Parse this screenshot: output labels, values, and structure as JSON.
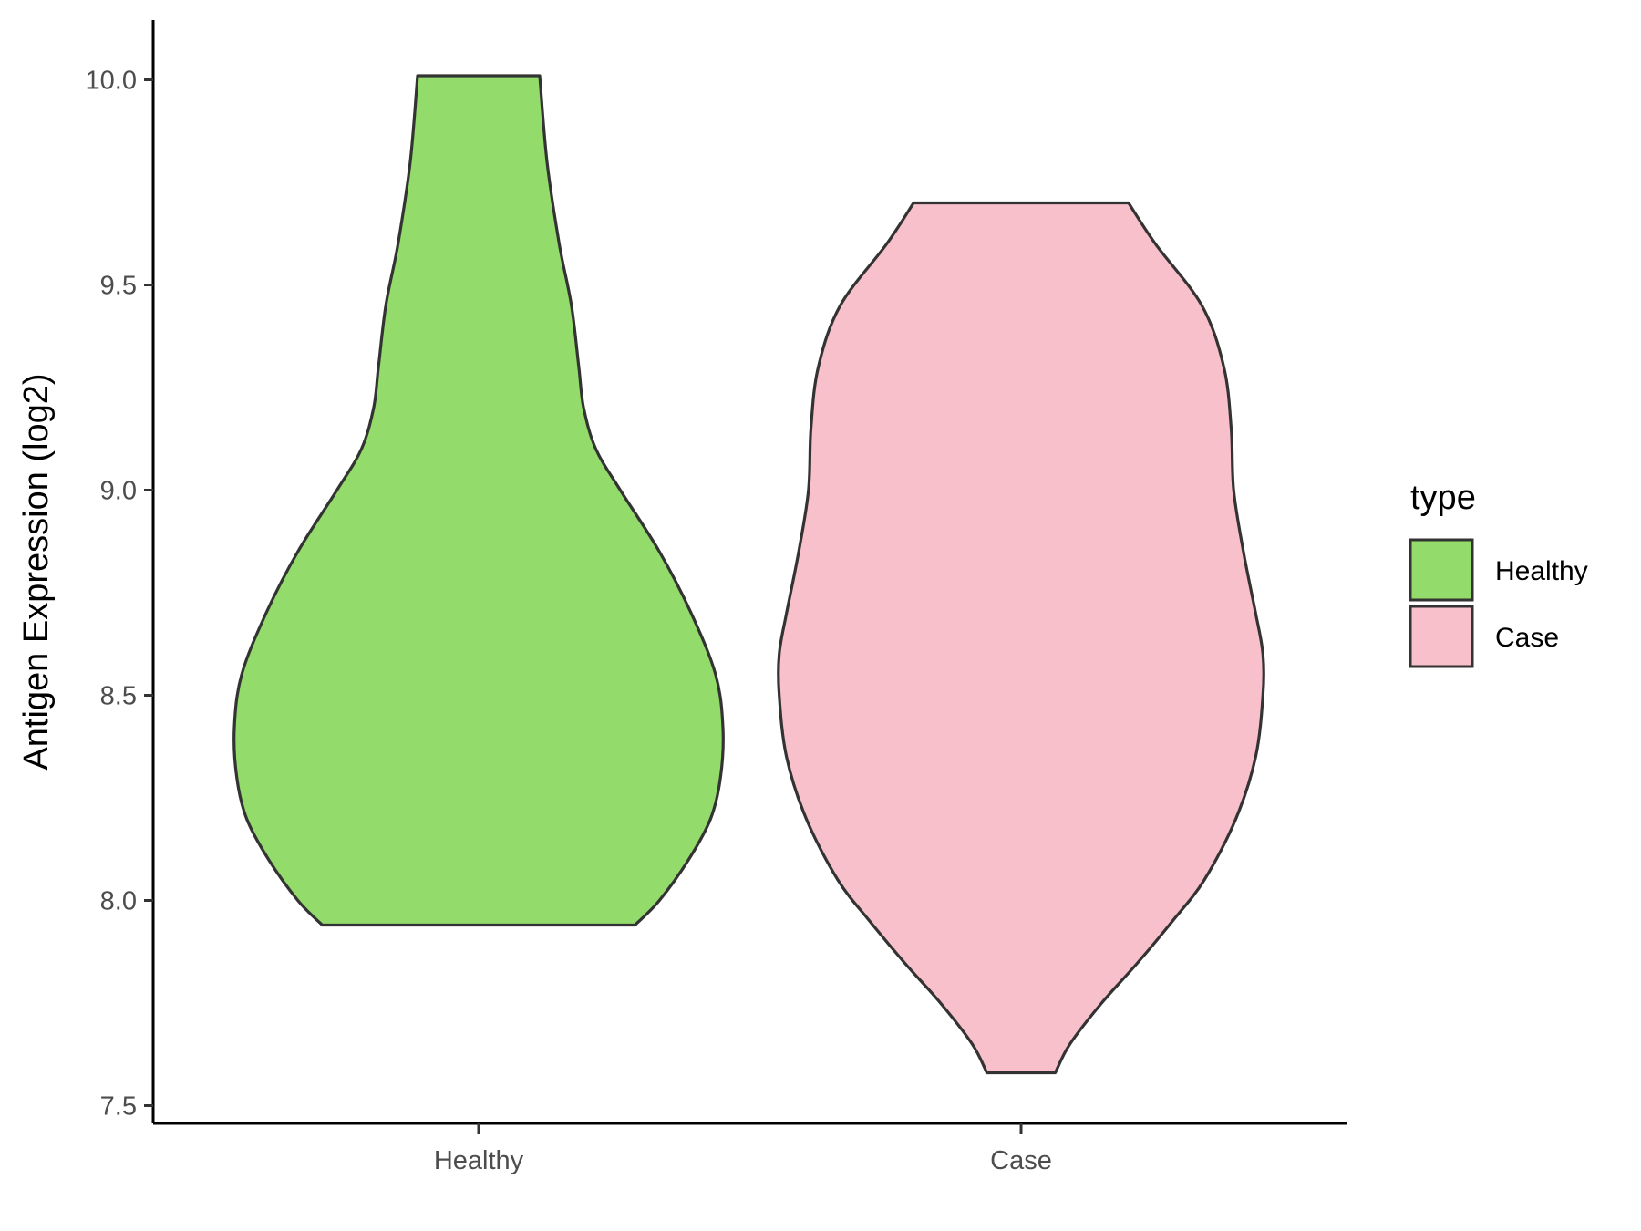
{
  "chart_data": {
    "type": "violin",
    "ylabel": "Antigen Expression (log2)",
    "xlabel": "",
    "ylim": [
      7.5,
      10.1
    ],
    "yticks": [
      "7.5",
      "8.0",
      "8.5",
      "9.0",
      "9.5",
      "10.0"
    ],
    "categories": [
      "Healthy",
      "Case"
    ],
    "grid": false,
    "legend": {
      "title": "type",
      "position": "right",
      "entries": [
        "Healthy",
        "Case"
      ]
    },
    "series": [
      {
        "name": "Healthy",
        "color": "#93DB6A",
        "min": 7.94,
        "max": 10.01,
        "density_profile": [
          [
            7.94,
            0.64
          ],
          [
            8.0,
            0.74
          ],
          [
            8.1,
            0.86
          ],
          [
            8.2,
            0.95
          ],
          [
            8.3,
            0.99
          ],
          [
            8.42,
            1.0
          ],
          [
            8.55,
            0.97
          ],
          [
            8.7,
            0.87
          ],
          [
            8.85,
            0.74
          ],
          [
            9.0,
            0.58
          ],
          [
            9.1,
            0.48
          ],
          [
            9.2,
            0.43
          ],
          [
            9.3,
            0.41
          ],
          [
            9.45,
            0.38
          ],
          [
            9.6,
            0.33
          ],
          [
            9.8,
            0.28
          ],
          [
            10.01,
            0.25
          ]
        ]
      },
      {
        "name": "Case",
        "color": "#F8C0CB",
        "min": 7.58,
        "max": 9.7,
        "density_profile": [
          [
            7.58,
            0.14
          ],
          [
            7.65,
            0.2
          ],
          [
            7.75,
            0.33
          ],
          [
            7.85,
            0.48
          ],
          [
            7.95,
            0.62
          ],
          [
            8.05,
            0.75
          ],
          [
            8.2,
            0.88
          ],
          [
            8.35,
            0.96
          ],
          [
            8.5,
            0.99
          ],
          [
            8.6,
            0.99
          ],
          [
            8.7,
            0.96
          ],
          [
            8.85,
            0.91
          ],
          [
            9.0,
            0.87
          ],
          [
            9.15,
            0.86
          ],
          [
            9.3,
            0.83
          ],
          [
            9.45,
            0.74
          ],
          [
            9.6,
            0.55
          ],
          [
            9.7,
            0.44
          ]
        ]
      }
    ]
  }
}
